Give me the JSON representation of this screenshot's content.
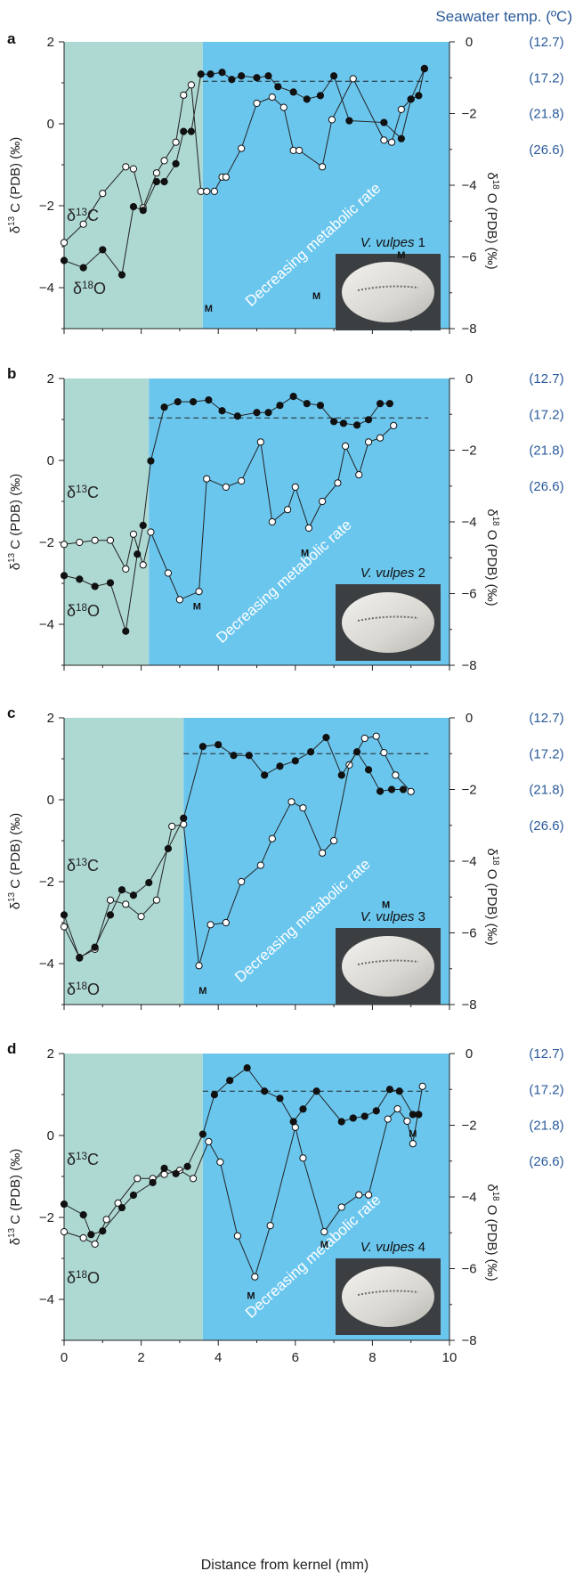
{
  "title_right": "Seawater temp. (ºC)",
  "x_axis_label": "Distance from kernel (mm)",
  "y_left_label": "δ13 C (PDB) (‰)",
  "y_right_label": "δ18 O (PDB) (‰)",
  "colors": {
    "left_zone": "#aed8d2",
    "right_zone": "#6bc6ee",
    "temp_blue": "#2a5a9a"
  },
  "temp_labels": [
    "(12.7)",
    "(17.2)",
    "(21.8)",
    "(26.6)"
  ],
  "rate_text": "Decreasing metabolic rate",
  "chart_data": [
    {
      "type": "line",
      "panel": "a",
      "species": "V. vulpes",
      "number": "1",
      "xlim": [
        0,
        10
      ],
      "y_left_lim": [
        -5,
        2
      ],
      "y_right_lim": [
        -8,
        0
      ],
      "x_ticks": [
        0,
        2,
        4,
        6,
        8,
        10
      ],
      "y_left_ticks": [
        2,
        0,
        -2,
        -4
      ],
      "y_right_ticks": [
        0,
        -2,
        -4,
        -6,
        -8
      ],
      "zone_boundary_x": 3.6,
      "dashed_ref_d18O": -1.1,
      "series": [
        {
          "name": "δ13C",
          "axis": "left",
          "marker": "open",
          "x": [
            0,
            0.5,
            1,
            1.6,
            1.8,
            2.05,
            2.4,
            2.6,
            2.9,
            3.1,
            3.3,
            3.55,
            3.7,
            3.9,
            4.1,
            4.2,
            4.6,
            5.0,
            5.4,
            5.7,
            5.95,
            6.1,
            6.7,
            6.95,
            7.5,
            8.3,
            8.5,
            8.75,
            9.0,
            9.35
          ],
          "y": [
            -2.9,
            -2.45,
            -1.7,
            -1.05,
            -1.1,
            -2.05,
            -1.2,
            -0.9,
            -0.45,
            0.7,
            0.95,
            -1.65,
            -1.65,
            -1.65,
            -1.3,
            -1.3,
            -0.6,
            0.5,
            0.65,
            0.4,
            -0.65,
            -0.65,
            -1.05,
            0.1,
            1.1,
            -0.4,
            -0.45,
            0.35,
            0.6,
            1.35
          ]
        },
        {
          "name": "δ18O",
          "axis": "right",
          "marker": "filled",
          "x": [
            0,
            0.5,
            1,
            1.5,
            1.8,
            2.05,
            2.4,
            2.6,
            2.9,
            3.1,
            3.3,
            3.55,
            3.8,
            4.1,
            4.35,
            4.6,
            5.0,
            5.3,
            5.55,
            5.95,
            6.3,
            6.65,
            7.0,
            7.4,
            8.3,
            8.75,
            9.0,
            9.2,
            9.35
          ],
          "y": [
            -6.1,
            -6.3,
            -5.8,
            -6.5,
            -4.6,
            -4.7,
            -3.9,
            -3.9,
            -3.4,
            -2.5,
            -2.5,
            -0.9,
            -0.9,
            -0.85,
            -1.05,
            -0.95,
            -1.0,
            -0.95,
            -1.25,
            -1.4,
            -1.6,
            -1.5,
            -0.95,
            -2.2,
            -2.25,
            -2.7,
            -1.6,
            -1.5,
            -0.75
          ]
        }
      ],
      "m_labels": [
        {
          "x": 3.75,
          "y": -4.5
        },
        {
          "x": 6.55,
          "y": -4.2
        },
        {
          "x": 8.75,
          "y": -3.2
        }
      ]
    },
    {
      "type": "line",
      "panel": "b",
      "species": "V. vulpes",
      "number": "2",
      "xlim": [
        0,
        10
      ],
      "y_left_lim": [
        -5,
        2
      ],
      "y_right_lim": [
        -8,
        0
      ],
      "x_ticks": [
        0,
        2,
        4,
        6,
        8,
        10
      ],
      "y_left_ticks": [
        2,
        0,
        -2,
        -4
      ],
      "y_right_ticks": [
        0,
        -2,
        -4,
        -6,
        -8
      ],
      "zone_boundary_x": 2.2,
      "dashed_ref_d18O": -1.1,
      "series": [
        {
          "name": "δ13C",
          "axis": "left",
          "marker": "open",
          "x": [
            0,
            0.4,
            0.8,
            1.2,
            1.6,
            1.8,
            2.05,
            2.25,
            2.7,
            3.0,
            3.5,
            3.7,
            4.2,
            4.6,
            5.1,
            5.4,
            5.8,
            6.0,
            6.35,
            6.7,
            7.1,
            7.3,
            7.65,
            7.9,
            8.2,
            8.55
          ],
          "y": [
            -2.05,
            -2.0,
            -1.95,
            -1.95,
            -2.65,
            -1.8,
            -2.55,
            -1.75,
            -2.75,
            -3.4,
            -3.2,
            -0.45,
            -0.65,
            -0.5,
            0.45,
            -1.5,
            -1.2,
            -0.65,
            -1.65,
            -1.0,
            -0.55,
            0.35,
            -0.35,
            0.45,
            0.55,
            0.85
          ]
        },
        {
          "name": "δ18O",
          "axis": "right",
          "marker": "filled",
          "x": [
            0,
            0.4,
            0.8,
            1.2,
            1.6,
            1.9,
            2.05,
            2.25,
            2.6,
            2.95,
            3.35,
            3.75,
            4.1,
            4.5,
            5.0,
            5.3,
            5.6,
            5.95,
            6.3,
            6.65,
            7.0,
            7.25,
            7.6,
            7.9,
            8.2,
            8.45
          ],
          "y": [
            -5.5,
            -5.6,
            -5.8,
            -5.7,
            -7.05,
            -4.9,
            -4.1,
            -2.3,
            -0.8,
            -0.65,
            -0.65,
            -0.6,
            -0.9,
            -1.05,
            -0.95,
            -0.95,
            -0.75,
            -0.5,
            -0.7,
            -0.75,
            -1.2,
            -1.25,
            -1.3,
            -1.15,
            -0.7,
            -0.7
          ]
        }
      ],
      "m_labels": [
        {
          "x": 3.45,
          "y": -3.55
        },
        {
          "x": 6.25,
          "y": -2.25
        }
      ]
    },
    {
      "type": "line",
      "panel": "c",
      "species": "V. vulpes",
      "number": "3",
      "xlim": [
        0,
        10
      ],
      "y_left_lim": [
        -5,
        2
      ],
      "y_right_lim": [
        -8,
        0
      ],
      "x_ticks": [
        0,
        2,
        4,
        6,
        8,
        10
      ],
      "y_left_ticks": [
        2,
        0,
        -2,
        -4
      ],
      "y_right_ticks": [
        0,
        -2,
        -4,
        -6,
        -8
      ],
      "zone_boundary_x": 3.1,
      "dashed_ref_d18O": -1.0,
      "series": [
        {
          "name": "δ13C",
          "axis": "left",
          "marker": "open",
          "x": [
            0,
            0.4,
            0.8,
            1.2,
            1.6,
            2.0,
            2.4,
            2.8,
            3.1,
            3.5,
            3.8,
            4.2,
            4.6,
            5.1,
            5.4,
            5.9,
            6.2,
            6.7,
            7.0,
            7.4,
            7.8,
            8.1,
            8.3,
            8.6,
            9.0
          ],
          "y": [
            -3.1,
            -3.85,
            -3.65,
            -2.45,
            -2.55,
            -2.85,
            -2.45,
            -0.65,
            -0.6,
            -4.05,
            -3.05,
            -3.0,
            -2.0,
            -1.6,
            -0.95,
            -0.05,
            -0.2,
            -1.3,
            -1.0,
            0.85,
            1.5,
            1.55,
            1.15,
            0.6,
            0.2
          ]
        },
        {
          "name": "δ18O",
          "axis": "right",
          "marker": "filled",
          "x": [
            0,
            0.4,
            0.8,
            1.2,
            1.5,
            1.8,
            2.2,
            2.7,
            3.1,
            3.6,
            4.0,
            4.4,
            4.8,
            5.2,
            5.6,
            6.0,
            6.4,
            6.8,
            7.2,
            7.6,
            7.9,
            8.2,
            8.5,
            8.8
          ],
          "y": [
            -5.5,
            -6.7,
            -6.4,
            -5.5,
            -4.8,
            -4.95,
            -4.6,
            -3.65,
            -2.8,
            -0.8,
            -0.75,
            -1.05,
            -1.05,
            -1.6,
            -1.35,
            -1.2,
            -0.95,
            -0.55,
            -1.6,
            -0.95,
            -1.45,
            -2.05,
            -2.0,
            -2.0
          ]
        }
      ],
      "m_labels": [
        {
          "x": 3.6,
          "y": -4.65
        },
        {
          "x": 8.35,
          "y": -2.55
        }
      ]
    },
    {
      "type": "line",
      "panel": "d",
      "species": "V. vulpes",
      "number": "4",
      "xlim": [
        0,
        10
      ],
      "y_left_lim": [
        -5,
        2
      ],
      "y_right_lim": [
        -8,
        0
      ],
      "x_ticks": [
        0,
        2,
        4,
        6,
        8,
        10
      ],
      "y_left_ticks": [
        2,
        0,
        -2,
        -4
      ],
      "y_right_ticks": [
        0,
        -2,
        -4,
        -6,
        -8
      ],
      "zone_boundary_x": 3.6,
      "dashed_ref_d18O": -1.05,
      "series": [
        {
          "name": "δ13C",
          "axis": "left",
          "marker": "open",
          "x": [
            0,
            0.5,
            0.8,
            1.1,
            1.4,
            1.9,
            2.3,
            2.6,
            3.0,
            3.35,
            3.75,
            4.05,
            4.5,
            4.95,
            5.35,
            6.0,
            6.2,
            6.75,
            7.2,
            7.65,
            7.9,
            8.4,
            8.65,
            8.9,
            9.05,
            9.3
          ],
          "y": [
            -2.35,
            -2.5,
            -2.65,
            -2.05,
            -1.65,
            -1.05,
            -1.05,
            -0.95,
            -0.85,
            -1.05,
            -0.15,
            -0.65,
            -2.45,
            -3.45,
            -2.2,
            0.2,
            -0.55,
            -2.35,
            -1.75,
            -1.45,
            -1.45,
            0.4,
            0.65,
            0.35,
            -0.2,
            1.2
          ]
        },
        {
          "name": "δ18O",
          "axis": "right",
          "marker": "filled",
          "x": [
            0,
            0.5,
            0.7,
            1.0,
            1.5,
            1.8,
            2.3,
            2.6,
            2.9,
            3.2,
            3.6,
            3.9,
            4.3,
            4.75,
            5.2,
            5.6,
            5.95,
            6.2,
            6.55,
            7.2,
            7.5,
            7.8,
            8.1,
            8.45,
            8.7,
            9.05,
            9.2
          ],
          "y": [
            -4.2,
            -4.5,
            -5.05,
            -4.95,
            -4.3,
            -3.95,
            -3.6,
            -3.2,
            -3.35,
            -3.15,
            -2.25,
            -1.15,
            -0.75,
            -0.4,
            -1.05,
            -1.25,
            -1.9,
            -1.55,
            -1.05,
            -1.9,
            -1.8,
            -1.75,
            -1.6,
            -1.0,
            -1.05,
            -1.7,
            -1.7
          ]
        }
      ],
      "m_labels": [
        {
          "x": 4.85,
          "y": -3.9
        },
        {
          "x": 6.75,
          "y": -2.65
        },
        {
          "x": 9.05,
          "y": 0.05
        }
      ]
    }
  ],
  "curve_labels": [
    {
      "c13": "δ13C",
      "o18": "δ18O"
    },
    {
      "c13": "δ13C",
      "o18": "δ18O"
    },
    {
      "c13": "δ13C",
      "o18": "δ18O"
    },
    {
      "c13": "δ13C",
      "o18": "δ18O"
    }
  ],
  "m_text": "M"
}
